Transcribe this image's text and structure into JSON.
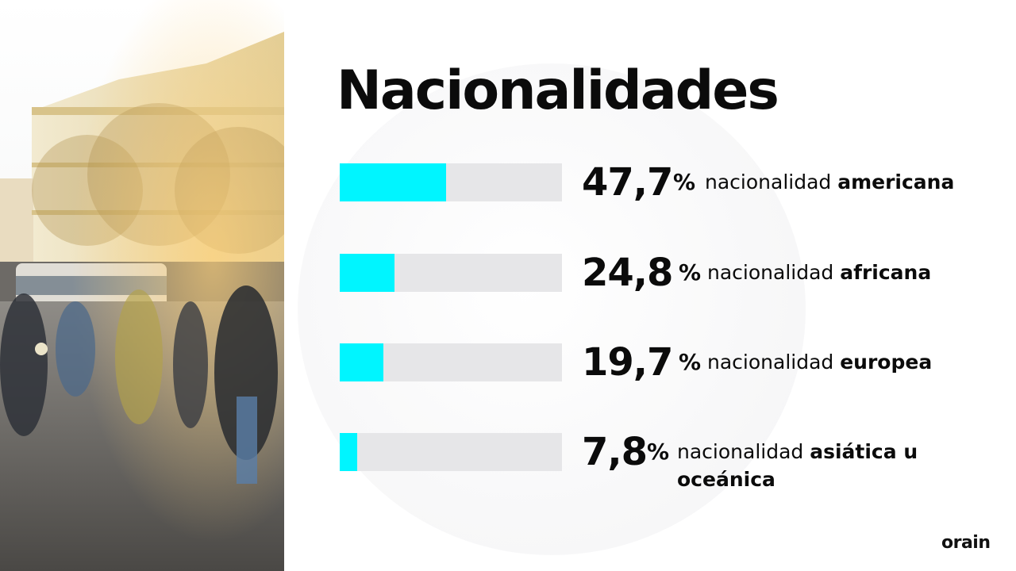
{
  "title": "Nacionalidades",
  "chart_data": {
    "type": "bar",
    "orientation": "horizontal",
    "xlim": [
      0,
      100
    ],
    "unit": "%",
    "bar_color": "#00f5ff",
    "track_color": "#e6e6e8",
    "categories": [
      {
        "value_label": "47,7",
        "value": 47.7,
        "prefix": "nacionalidad",
        "emphasis": "americana",
        "emphasis_line2": ""
      },
      {
        "value_label": "24,8",
        "value": 24.8,
        "prefix": "nacionalidad",
        "emphasis": "africana",
        "emphasis_line2": ""
      },
      {
        "value_label": "19,7",
        "value": 19.7,
        "prefix": "nacionalidad",
        "emphasis": "europea",
        "emphasis_line2": ""
      },
      {
        "value_label": "7,8",
        "value": 7.8,
        "prefix": "nacionalidad",
        "emphasis": "asiática u",
        "emphasis_line2": "oceánica"
      }
    ]
  },
  "logo": "orain",
  "photo": {
    "subject": "street-photo",
    "icon": "street-photo-image"
  }
}
